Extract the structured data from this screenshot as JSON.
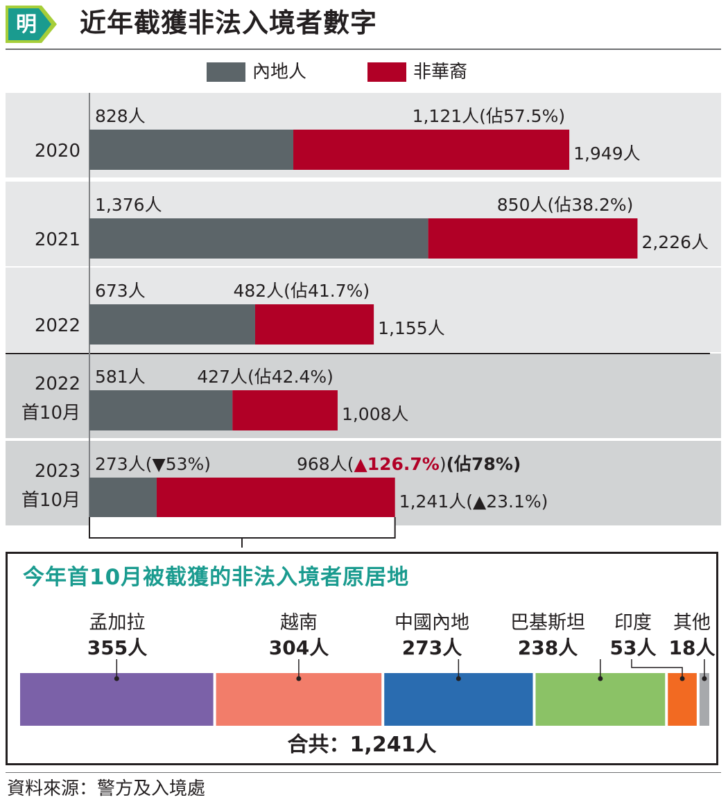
{
  "header": {
    "logo_text": "明",
    "title": "近年截獲非法入境者數字"
  },
  "legend": [
    {
      "label": "內地人",
      "color": "#5c6569"
    },
    {
      "label": "非華裔",
      "color": "#b10026"
    }
  ],
  "chart_data": [
    {
      "type": "bar",
      "stacked": true,
      "orientation": "horizontal",
      "categories": [
        "2020",
        "2021",
        "2022",
        "2022\n首10月",
        "2023\n首10月"
      ],
      "series": [
        {
          "name": "內地人",
          "values": [
            828,
            1376,
            673,
            581,
            273
          ]
        },
        {
          "name": "非華裔",
          "values": [
            1121,
            850,
            482,
            427,
            968
          ]
        }
      ],
      "totals": [
        1949,
        2226,
        1155,
        1008,
        1241
      ],
      "rows": [
        {
          "label_line1": "2020",
          "label_line2": "",
          "mainland_label": "828人",
          "foreign_label": "1,121人(佔57.5%)",
          "total_label": "1,949人",
          "bg": "#e6e7e8"
        },
        {
          "label_line1": "2021",
          "label_line2": "",
          "mainland_label": "1,376人",
          "foreign_label": "850人(佔38.2%)",
          "total_label": "2,226人",
          "bg": "#e6e7e8"
        },
        {
          "label_line1": "2022",
          "label_line2": "",
          "mainland_label": "673人",
          "foreign_label": "482人(佔41.7%)",
          "total_label": "1,155人",
          "bg": "#e6e7e8"
        },
        {
          "label_line1": "2022",
          "label_line2": "首10月",
          "mainland_label": "581人",
          "foreign_label": "427人(佔42.4%)",
          "total_label": "1,008人",
          "bg": "#d1d3d4"
        },
        {
          "label_line1": "2023",
          "label_line2": "首10月",
          "mainland_label": "273人(▼53%)",
          "foreign_label": "",
          "total_label": "1,241人(▲23.1%)",
          "bg": "#d1d3d4"
        }
      ],
      "annotation_2023": {
        "prefix": "968人(",
        "change": "▲126.7%",
        "suffix": ")",
        "share": "(佔78%)"
      }
    },
    {
      "type": "bar",
      "stacked": true,
      "orientation": "horizontal",
      "title": "今年首10月被截獲的非法入境者原居地",
      "categories": [
        "孟加拉",
        "越南",
        "中國內地",
        "巴基斯坦",
        "印度",
        "其他"
      ],
      "values": [
        355,
        304,
        273,
        238,
        53,
        18
      ],
      "value_labels": [
        "355人",
        "304人",
        "273人",
        "238人",
        "53人",
        "18人"
      ],
      "colors": [
        "#7b61a8",
        "#f27d6a",
        "#2a6cb0",
        "#8bc266",
        "#f26a22",
        "#a7a9ac"
      ],
      "total_label": "合共：1,241人"
    }
  ],
  "source": "資料來源：警方及入境處"
}
